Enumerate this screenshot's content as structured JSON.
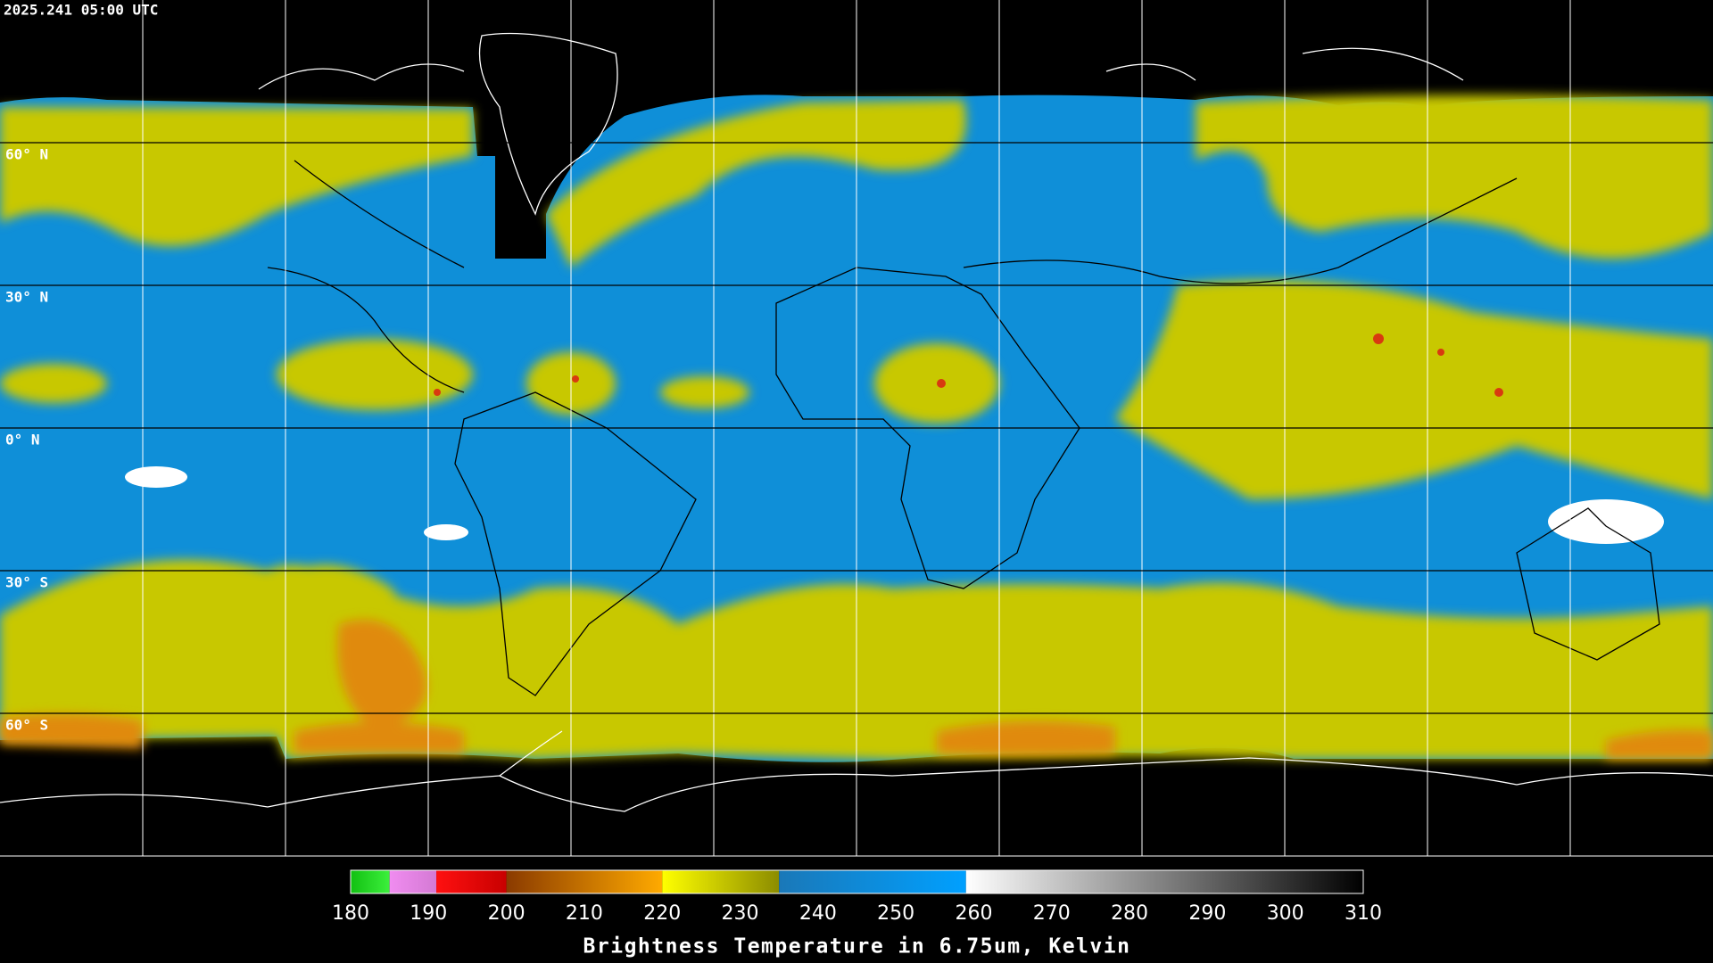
{
  "header": {
    "timestamp": "2025.241 05:00 UTC"
  },
  "latitudes": [
    {
      "value": 60,
      "label": "60° N"
    },
    {
      "value": 30,
      "label": "30° N"
    },
    {
      "value": 0,
      "label": "0° N"
    },
    {
      "value": -30,
      "label": "30° S"
    },
    {
      "value": -60,
      "label": "60° S"
    }
  ],
  "colorbar": {
    "title": "Brightness Temperature in 6.75um, Kelvin",
    "range": [
      180,
      310
    ],
    "ticks": [
      180,
      190,
      200,
      210,
      220,
      230,
      240,
      250,
      260,
      270,
      280,
      290,
      300,
      310
    ],
    "segments": [
      {
        "from": 180,
        "to": 185,
        "colors": [
          "#12c012",
          "#3cf03c"
        ]
      },
      {
        "from": 185,
        "to": 191,
        "colors": [
          "#f08cf0",
          "#d47ad4"
        ]
      },
      {
        "from": 191,
        "to": 200,
        "colors": [
          "#ff1010",
          "#c80000"
        ]
      },
      {
        "from": 200,
        "to": 220,
        "colors": [
          "#8a3a00",
          "#ffaa00"
        ]
      },
      {
        "from": 220,
        "to": 235,
        "colors": [
          "#ffff00",
          "#8c8c00"
        ]
      },
      {
        "from": 235,
        "to": 259,
        "colors": [
          "#1a78b8",
          "#00a0ff"
        ]
      },
      {
        "from": 259,
        "to": 310,
        "colors": [
          "#ffffff",
          "#000000"
        ]
      }
    ]
  }
}
